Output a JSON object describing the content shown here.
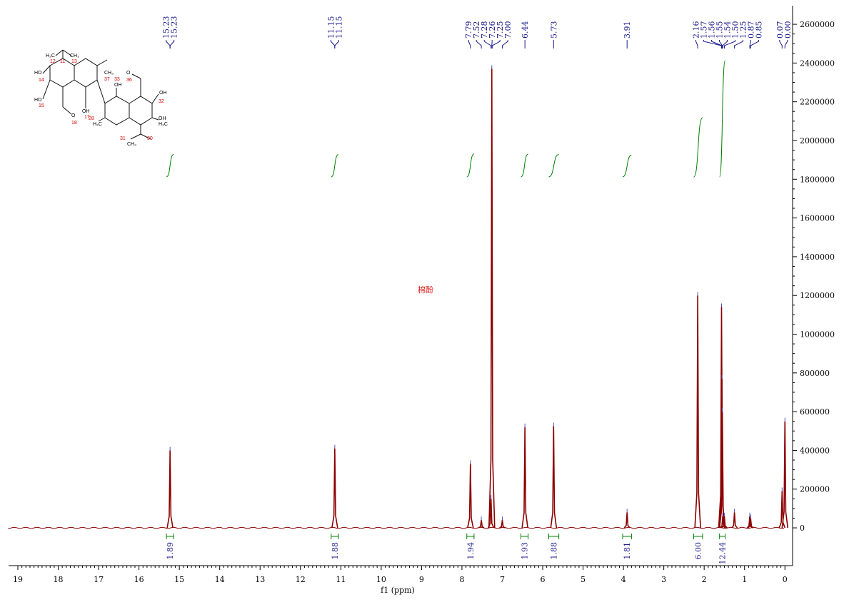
{
  "chart_data": {
    "type": "nmr",
    "annotation": "棉酚",
    "x_label": "f1 (ppm)",
    "xlim": [
      19.23,
      -0.19
    ],
    "xticks": [
      0,
      1,
      2,
      3,
      4,
      5,
      6,
      7,
      8,
      9,
      10,
      11,
      12,
      13,
      14,
      15,
      16,
      17,
      18,
      19
    ],
    "ylim": [
      -184000,
      2696000
    ],
    "yticks": [
      0,
      200000,
      400000,
      600000,
      800000,
      1000000,
      1200000,
      1400000,
      1600000,
      1800000,
      2000000,
      2200000,
      2400000,
      2600000
    ],
    "color": "#8b0000",
    "peaks": {
      "x": [
        15.23,
        11.15,
        7.79,
        7.52,
        7.28,
        7.26,
        7.0,
        6.44,
        5.73,
        3.91,
        2.16,
        1.57,
        1.56,
        1.55,
        1.54,
        1.5,
        1.25,
        0.87,
        0.85,
        0.07,
        0.0
      ],
      "values": [
        400000,
        410000,
        330000,
        40000,
        150000,
        2370000,
        40000,
        520000,
        525000,
        80000,
        1200000,
        1140000,
        770000,
        600000,
        60000,
        60000,
        80000,
        60000,
        50000,
        190000,
        550000
      ]
    },
    "peak_labels": [
      {
        "value": 15.23,
        "label": "15.23"
      },
      {
        "value": 15.23,
        "label": "15.23"
      },
      {
        "value": 11.15,
        "label": "11.15"
      },
      {
        "value": 11.15,
        "label": "11.15"
      },
      {
        "value": 7.79,
        "label": "7.79"
      },
      {
        "value": 7.52,
        "label": "7.52"
      },
      {
        "value": 7.28,
        "label": "7.28"
      },
      {
        "value": 7.26,
        "label": "7.26"
      },
      {
        "value": 7.25,
        "label": "7.25"
      },
      {
        "value": 7.0,
        "label": "7.00"
      },
      {
        "value": 6.44,
        "label": "6.44"
      },
      {
        "value": 5.73,
        "label": "5.73"
      },
      {
        "value": 3.91,
        "label": "3.91"
      },
      {
        "value": 2.16,
        "label": "2.16"
      },
      {
        "value": 1.57,
        "label": "1.57"
      },
      {
        "value": 1.56,
        "label": "1.56"
      },
      {
        "value": 1.55,
        "label": "1.55"
      },
      {
        "value": 1.54,
        "label": "1.54"
      },
      {
        "value": 1.5,
        "label": "1.50"
      },
      {
        "value": 1.25,
        "label": "1.25"
      },
      {
        "value": 0.87,
        "label": "0.87"
      },
      {
        "value": 0.85,
        "label": "0.85"
      },
      {
        "value": 0.07,
        "label": "0.07"
      },
      {
        "value": 0.0,
        "label": "0.00"
      }
    ],
    "integrals": {
      "ranges": [
        [
          15.32,
          15.14
        ],
        [
          11.24,
          11.06
        ],
        [
          7.88,
          7.7
        ],
        [
          6.54,
          6.36
        ],
        [
          5.85,
          5.6
        ],
        [
          4.02,
          3.8
        ],
        [
          2.26,
          2.04
        ],
        [
          1.62,
          1.48
        ]
      ],
      "values": [
        1.89,
        1.88,
        1.94,
        1.93,
        1.88,
        1.81,
        6.0,
        12.44
      ],
      "value_labels": [
        "1.89",
        "1.88",
        "1.94",
        "1.93",
        "1.88",
        "1.81",
        "6.00",
        "12.44"
      ]
    },
    "structure": {
      "labels": [
        "H₃C",
        "12",
        "11",
        "CH₃",
        "13",
        "HO",
        "14",
        "HO",
        "15",
        "OH",
        "17",
        "O",
        "18",
        "CH₃",
        "37",
        "O",
        "36",
        "OH",
        "33",
        "OH",
        "32",
        "OH",
        "H₃C",
        "28",
        "H₃C",
        "31",
        "CH₃",
        "30"
      ]
    }
  }
}
